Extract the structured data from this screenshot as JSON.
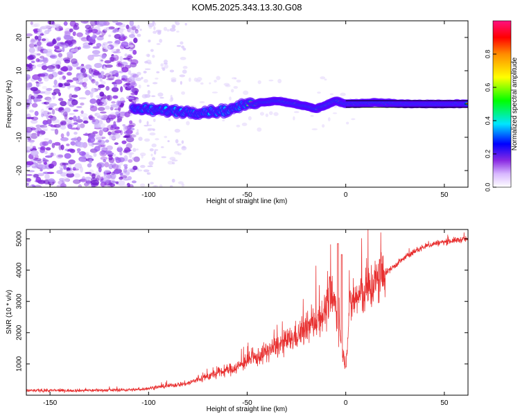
{
  "title": "KOM5.2025.343.13.30.G08",
  "chart_data": [
    {
      "type": "heatmap",
      "title": "KOM5.2025.343.13.30.G08",
      "xlabel": "Height of straight line (km)",
      "ylabel": "Frequency (Hz)",
      "xlim": [
        -162,
        62
      ],
      "ylim": [
        -25,
        25
      ],
      "xticks": [
        "-150",
        "-100",
        "-50",
        "0",
        "50"
      ],
      "yticks": [
        "-20",
        "-10",
        "0",
        "10",
        "20"
      ],
      "colorbar": {
        "label": "Normalized spectral amplitude",
        "range": [
          0,
          1
        ],
        "ticks": [
          "0.0",
          "0.2",
          "0.4",
          "0.6",
          "0.8"
        ]
      },
      "ridge": {
        "description_points_x": [
          -108,
          -90,
          -75,
          -60,
          -50,
          -35,
          -25,
          -15,
          -5,
          0,
          15,
          30,
          62
        ],
        "description_points_y": [
          -1.5,
          -2,
          -2.5,
          -2,
          0,
          1,
          0,
          -1.5,
          1,
          0,
          0.5,
          0,
          0
        ]
      }
    },
    {
      "type": "line",
      "xlabel": "Height of straight line (km)",
      "ylabel": "SNR (10 * v/v)",
      "xlim": [
        -162,
        62
      ],
      "ylim": [
        0,
        5300
      ],
      "xticks": [
        "-150",
        "-100",
        "-50",
        "0",
        "50"
      ],
      "yticks": [
        "1000",
        "2000",
        "3000",
        "4000",
        "5000"
      ],
      "series": [
        {
          "name": "SNR",
          "color": "#e83030",
          "x": [
            -162,
            -140,
            -120,
            -105,
            -100,
            -90,
            -80,
            -75,
            -70,
            -65,
            -60,
            -55,
            -50,
            -45,
            -40,
            -35,
            -30,
            -25,
            -20,
            -15,
            -10,
            -8,
            -5,
            -3,
            -1,
            0,
            2,
            5,
            10,
            15,
            20,
            25,
            30,
            35,
            40,
            45,
            50,
            55,
            62
          ],
          "values": [
            150,
            150,
            160,
            180,
            220,
            300,
            380,
            500,
            600,
            700,
            800,
            900,
            1100,
            1200,
            1400,
            1550,
            1700,
            1900,
            2100,
            2400,
            2700,
            3200,
            2800,
            2000,
            1200,
            1000,
            2800,
            3100,
            3300,
            3600,
            3900,
            4150,
            4400,
            4600,
            4750,
            4850,
            4900,
            4950,
            5000
          ]
        }
      ],
      "spikes": [
        {
          "x": -4,
          "value": 4850
        },
        {
          "x": -2,
          "value": 4500
        },
        {
          "x": 0,
          "value": 900
        }
      ]
    }
  ]
}
